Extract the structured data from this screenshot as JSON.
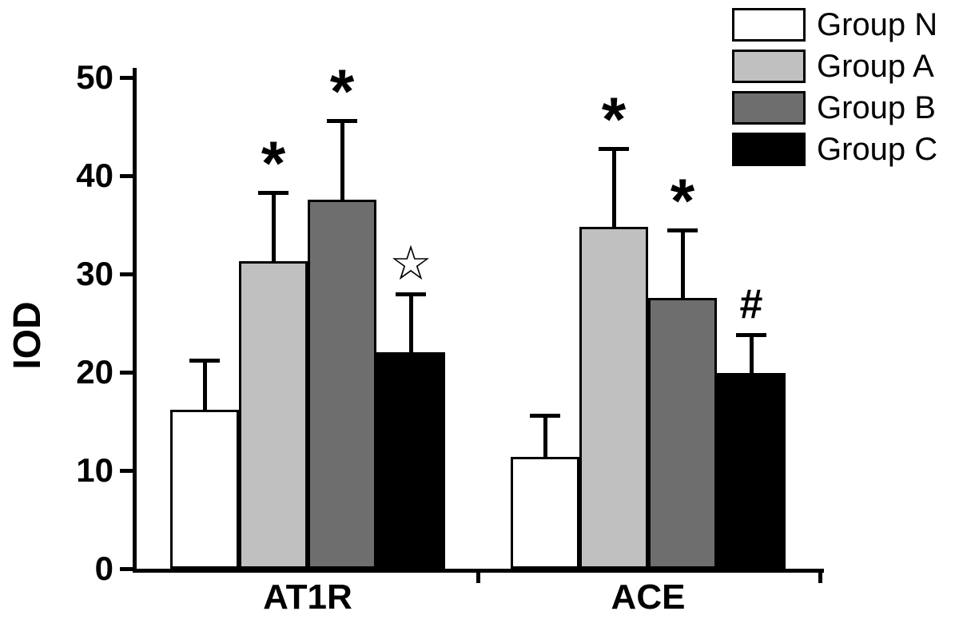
{
  "chart_data": {
    "type": "bar",
    "title": "",
    "xlabel": "",
    "ylabel": "IOD",
    "ylim": [
      0,
      50
    ],
    "yticks": [
      0,
      10,
      20,
      30,
      40,
      50
    ],
    "categories": [
      "AT1R",
      "ACE"
    ],
    "grid": false,
    "legend_position": "top-right",
    "error_bars": "upper whisker with cap",
    "series": [
      {
        "name": "Group N",
        "color": "#ffffff",
        "values": [
          16.2,
          11.4
        ],
        "errors": [
          5.0,
          4.2
        ],
        "markers": [
          "",
          ""
        ]
      },
      {
        "name": "Group A",
        "color": "#c0c0c0",
        "values": [
          31.3,
          34.8
        ],
        "errors": [
          7.0,
          8.0
        ],
        "markers": [
          "*",
          "*"
        ]
      },
      {
        "name": "Group B",
        "color": "#6e6e6e",
        "values": [
          37.6,
          27.6
        ],
        "errors": [
          8.0,
          6.9
        ],
        "markers": [
          "*",
          "*"
        ]
      },
      {
        "name": "Group C",
        "color": "#000000",
        "values": [
          22.0,
          19.9
        ],
        "errors": [
          6.0,
          3.9
        ],
        "markers": [
          "☆",
          "#"
        ]
      }
    ]
  }
}
